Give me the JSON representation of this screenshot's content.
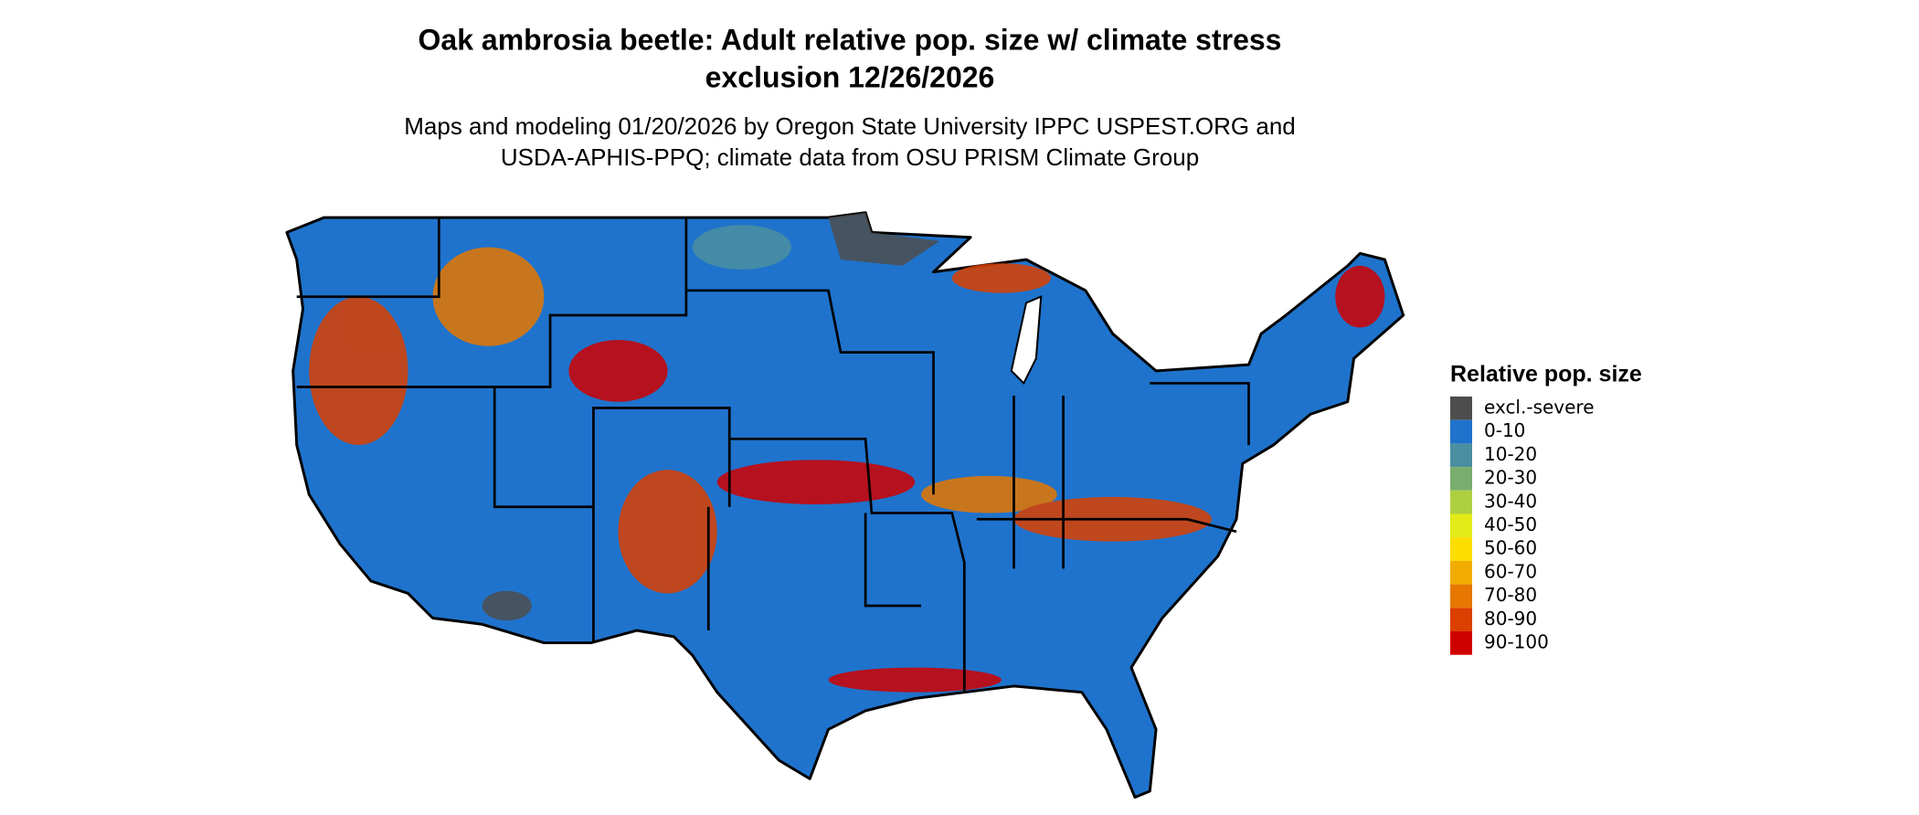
{
  "title": [
    "Oak ambrosia beetle: Adult relative pop. size w/ climate stress",
    "exclusion 12/26/2026"
  ],
  "subtitle": [
    "Maps and modeling 01/20/2026 by Oregon State University IPPC USPEST.ORG and",
    "USDA-APHIS-PPQ; climate data from OSU PRISM Climate Group"
  ],
  "legend": {
    "title": "Relative pop. size",
    "items": [
      {
        "label": "excl.-severe",
        "color": "#4d4d4d"
      },
      {
        "label": "0-10",
        "color": "#1f73cc"
      },
      {
        "label": "10-20",
        "color": "#4a8fa0"
      },
      {
        "label": "20-30",
        "color": "#79ad6e"
      },
      {
        "label": "30-40",
        "color": "#aed040"
      },
      {
        "label": "40-50",
        "color": "#e2ea18"
      },
      {
        "label": "50-60",
        "color": "#fbdd00"
      },
      {
        "label": "60-70",
        "color": "#f2ac00"
      },
      {
        "label": "70-80",
        "color": "#e67700"
      },
      {
        "label": "80-90",
        "color": "#dc4000"
      },
      {
        "label": "90-100",
        "color": "#d00000"
      }
    ]
  }
}
